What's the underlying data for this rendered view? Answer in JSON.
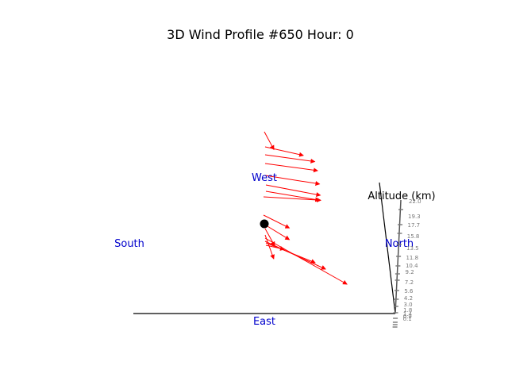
{
  "chart_data": {
    "type": "scatter",
    "title": "3D Wind Profile #650 Hour: 0",
    "compass_labels": {
      "west": "West",
      "south": "South",
      "north": "North",
      "east": "East"
    },
    "altitude_axis_label": "Altitude (km)",
    "altitude_tick_labels": [
      "22.0",
      "19.3",
      "17.7",
      "15.8",
      "13.5",
      "11.8",
      "10.4",
      "9.2",
      "7.2",
      "5.6",
      "4.2",
      "3.0",
      "1.8",
      "1.4",
      "0.9",
      "0.1"
    ],
    "wind_vectors": [
      {
        "dx": 0.1,
        "dy": 0.62
      },
      {
        "dx": 0.4,
        "dy": 0.3
      },
      {
        "dx": 0.52,
        "dy": 0.24
      },
      {
        "dx": 0.55,
        "dy": 0.25
      },
      {
        "dx": 0.57,
        "dy": 0.3
      },
      {
        "dx": 0.57,
        "dy": 0.36
      },
      {
        "dx": 0.56,
        "dy": 0.31
      },
      {
        "dx": 0.6,
        "dy": 0.12
      },
      {
        "dx": 0.27,
        "dy": 0.45
      },
      {
        "dx": 0.27,
        "dy": 0.55
      },
      {
        "dx": 0.1,
        "dy": 0.6
      },
      {
        "dx": 0.09,
        "dy": 0.83
      }
    ],
    "colors": {
      "vectors": "#ff0000",
      "compass": "#0000cc",
      "axes": "#000000",
      "ticks": "#777777",
      "marker": "#000000"
    }
  }
}
